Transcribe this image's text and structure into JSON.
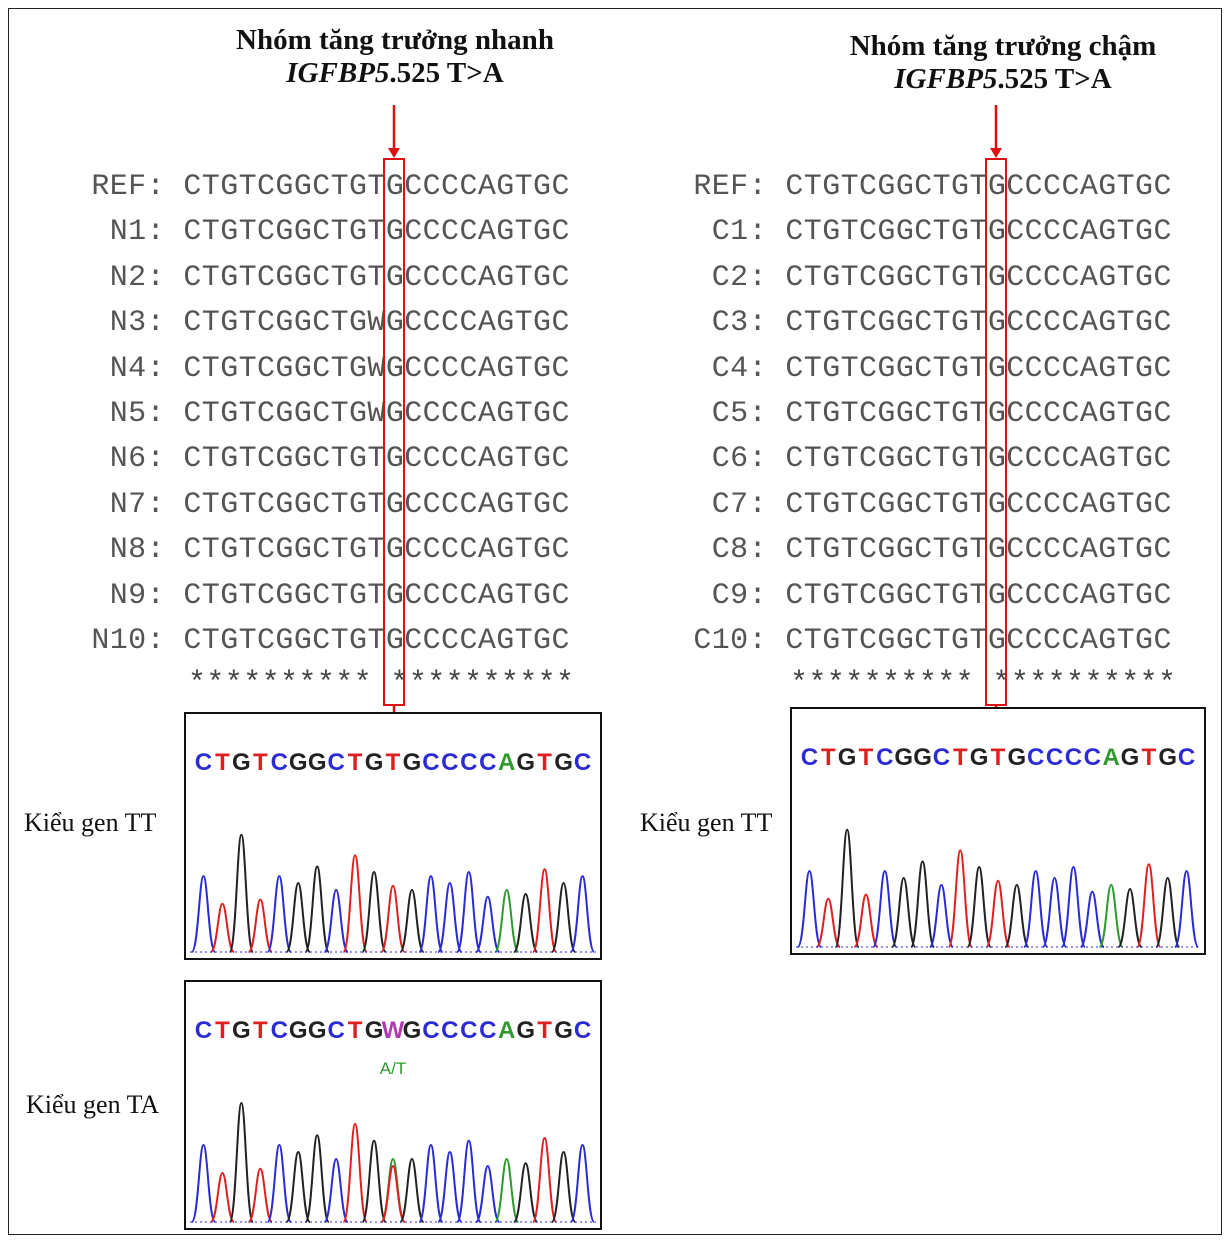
{
  "left_panel": {
    "title_line1": "Nhóm tăng trưởng nhanh",
    "title_gene": "IGFBP5",
    "title_rest": ".525 T>A",
    "rows": [
      {
        "label": "REF:",
        "seq": "CTGTCGGCTGTGCCCCAGTGC"
      },
      {
        "label": "N1:",
        "seq": "CTGTCGGCTGTGCCCCAGTGC"
      },
      {
        "label": "N2:",
        "seq": "CTGTCGGCTGTGCCCCAGTGC"
      },
      {
        "label": "N3:",
        "seq": "CTGTCGGCTGWGCCCCAGTGC"
      },
      {
        "label": "N4:",
        "seq": "CTGTCGGCTGWGCCCCAGTGC"
      },
      {
        "label": "N5:",
        "seq": "CTGTCGGCTGWGCCCCAGTGC"
      },
      {
        "label": "N6:",
        "seq": "CTGTCGGCTGTGCCCCAGTGC"
      },
      {
        "label": "N7:",
        "seq": "CTGTCGGCTGTGCCCCAGTGC"
      },
      {
        "label": "N8:",
        "seq": "CTGTCGGCTGTGCCCCAGTGC"
      },
      {
        "label": "N9:",
        "seq": "CTGTCGGCTGTGCCCCAGTGC"
      },
      {
        "label": "N10:",
        "seq": "CTGTCGGCTGTGCCCCAGTGC"
      }
    ],
    "consensus": "********** **********",
    "chromatograms": [
      {
        "genotype": "Kiểu gen TT",
        "bases": "CTGTCGGCTGTGCCCCAGTGC",
        "annotation": ""
      },
      {
        "genotype": "Kiểu gen TA",
        "bases": "CTGTCGGCTGWGCCCCAGTGC",
        "annotation": "A/T"
      }
    ]
  },
  "right_panel": {
    "title_line1": "Nhóm tăng trưởng chậm",
    "title_gene": "IGFBP5",
    "title_rest": ".525 T>A",
    "rows": [
      {
        "label": "REF:",
        "seq": "CTGTCGGCTGTGCCCCAGTGC"
      },
      {
        "label": "C1:",
        "seq": "CTGTCGGCTGTGCCCCAGTGC"
      },
      {
        "label": "C2:",
        "seq": "CTGTCGGCTGTGCCCCAGTGC"
      },
      {
        "label": "C3:",
        "seq": "CTGTCGGCTGTGCCCCAGTGC"
      },
      {
        "label": "C4:",
        "seq": "CTGTCGGCTGTGCCCCAGTGC"
      },
      {
        "label": "C5:",
        "seq": "CTGTCGGCTGTGCCCCAGTGC"
      },
      {
        "label": "C6:",
        "seq": "CTGTCGGCTGTGCCCCAGTGC"
      },
      {
        "label": "C7:",
        "seq": "CTGTCGGCTGTGCCCCAGTGC"
      },
      {
        "label": "C8:",
        "seq": "CTGTCGGCTGTGCCCCAGTGC"
      },
      {
        "label": "C9:",
        "seq": "CTGTCGGCTGTGCCCCAGTGC"
      },
      {
        "label": "C10:",
        "seq": "CTGTCGGCTGTGCCCCAGTGC"
      }
    ],
    "consensus": "********** **********",
    "chromatograms": [
      {
        "genotype": "Kiểu gen TT",
        "bases": "CTGTCGGCTGTGCCCCAGTGC",
        "annotation": ""
      }
    ]
  },
  "colors": {
    "highlight": "#dd1111",
    "A": "#2e9a2e",
    "C": "#2b2bd6",
    "G": "#222222",
    "T": "#e02020",
    "W": "#b03ab0"
  }
}
